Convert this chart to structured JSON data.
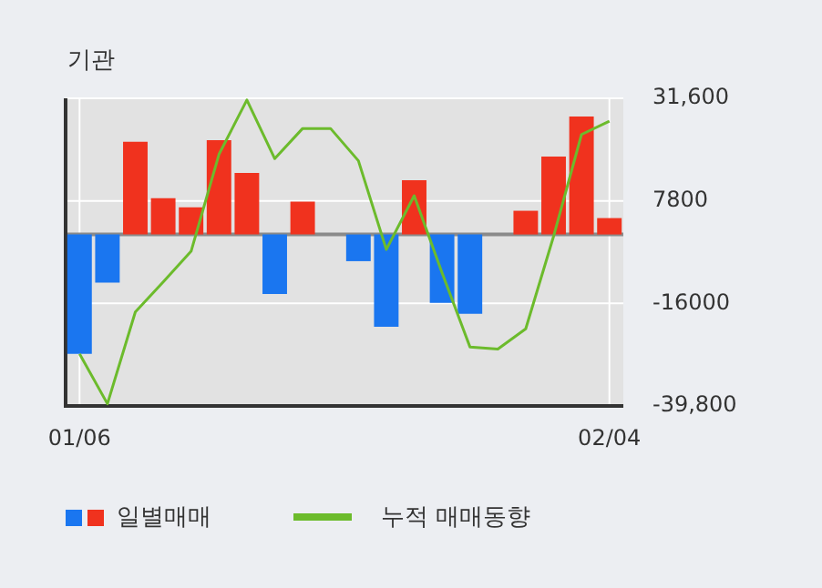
{
  "chart_data": {
    "type": "bar",
    "title": "기관",
    "categories": [
      "01/06",
      null,
      null,
      null,
      null,
      null,
      null,
      null,
      null,
      null,
      null,
      null,
      null,
      null,
      null,
      null,
      null,
      null,
      null,
      "02/04"
    ],
    "series": [
      {
        "name": "일별매매",
        "colors": [
          "#1a76f0",
          "#1a76f0",
          "#f0321e",
          "#f0321e",
          "#f0321e",
          "#f0321e",
          "#f0321e",
          "#1a76f0",
          "#f0321e",
          "#f0321e",
          "#1a76f0",
          "#1a76f0",
          "#f0321e",
          "#1a76f0",
          "#1a76f0",
          "#f0321e",
          "#f0321e",
          "#f0321e",
          "#f0321e",
          "#f0321e"
        ],
        "values": [
          -27700,
          -11200,
          21500,
          8400,
          6300,
          21900,
          14300,
          -13800,
          7600,
          0,
          -6200,
          -21400,
          12600,
          -15900,
          -18400,
          0,
          5500,
          18100,
          27400,
          3800
        ]
      },
      {
        "type": "line",
        "name": "누적 매매동향",
        "color": "#6cbb2c",
        "values": [
          -27700,
          -39300,
          -18000,
          -11000,
          -3900,
          18600,
          31200,
          17600,
          24600,
          24600,
          17100,
          -3500,
          9000,
          -8900,
          -26100,
          -26600,
          -21900,
          -400,
          23200,
          26300
        ]
      }
    ],
    "ylim": [
      -39800,
      31600
    ],
    "yticks": [
      {
        "value": 31600,
        "label": "31,600"
      },
      7800,
      -16000,
      {
        "value": -39800,
        "label": "-39,800"
      }
    ],
    "ref_lines": [
      {
        "axis": "y",
        "value": 0,
        "color": "#8a8a8a"
      }
    ],
    "grid": true,
    "legend": "bottom",
    "marker": "none"
  }
}
